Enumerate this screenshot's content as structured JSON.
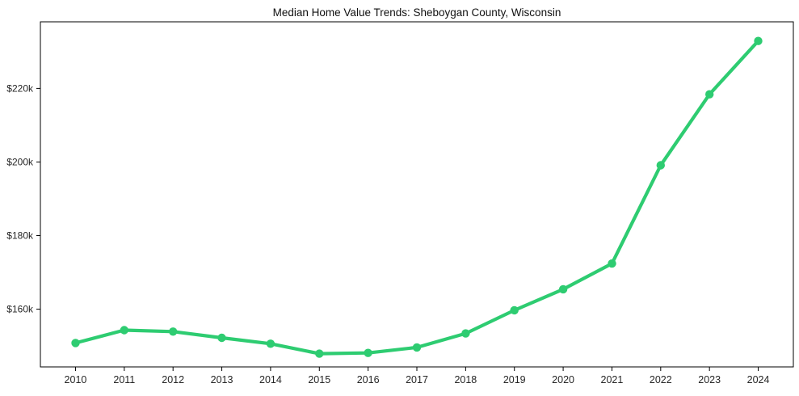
{
  "chart_data": {
    "type": "line",
    "title": "Median Home Value Trends: Sheboygan County, Wisconsin",
    "xlabel": "",
    "ylabel": "",
    "x": [
      2010,
      2011,
      2012,
      2013,
      2014,
      2015,
      2016,
      2017,
      2018,
      2019,
      2020,
      2021,
      2022,
      2023,
      2024
    ],
    "xticks": [
      "2010",
      "2011",
      "2012",
      "2013",
      "2014",
      "2015",
      "2016",
      "2017",
      "2018",
      "2019",
      "2020",
      "2021",
      "2022",
      "2023",
      "2024"
    ],
    "series": [
      {
        "name": "Median Home Value",
        "values": [
          150800,
          154300,
          153900,
          152200,
          150600,
          147900,
          148100,
          149600,
          153400,
          159700,
          165400,
          172400,
          199100,
          218400,
          232900
        ]
      }
    ],
    "yticks": [
      {
        "value": 160000,
        "label": "$160k"
      },
      {
        "value": 180000,
        "label": "$180k"
      },
      {
        "value": 200000,
        "label": "$200k"
      },
      {
        "value": 220000,
        "label": "$220k"
      }
    ],
    "xlim": [
      2009.28,
      2024.72
    ],
    "ylim": [
      144300,
      238100
    ],
    "grid": false,
    "legend": "none",
    "colors": {
      "line": "#2ecc71",
      "marker": "#2ecc71",
      "spine": "#000000",
      "tick": "#000000",
      "tick_label": "#262626",
      "title": "#111111",
      "background": "#ffffff"
    }
  }
}
